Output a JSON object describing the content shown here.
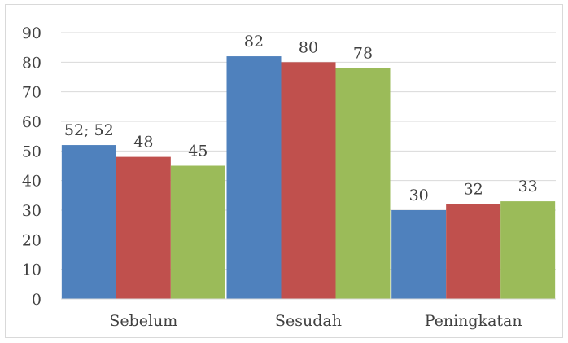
{
  "chart_data": {
    "type": "bar",
    "categories": [
      "Sebelum",
      "Sesudah",
      "Peningkatan"
    ],
    "series": [
      {
        "values": [
          52,
          82,
          30
        ],
        "color": "#4f81bd"
      },
      {
        "values": [
          48,
          80,
          32
        ],
        "color": "#c0504d"
      },
      {
        "values": [
          45,
          78,
          33
        ],
        "color": "#9bbb59"
      }
    ],
    "data_labels": [
      [
        "52; 52",
        "82",
        "30"
      ],
      [
        "48",
        "80",
        "32"
      ],
      [
        "45",
        "78",
        "33"
      ]
    ],
    "y_ticks": [
      "0",
      "10",
      "20",
      "30",
      "40",
      "50",
      "60",
      "70",
      "80",
      "90"
    ],
    "ylim": [
      0,
      90
    ],
    "grid": true,
    "legend": false,
    "gridline_color": "#d9d9d9"
  }
}
